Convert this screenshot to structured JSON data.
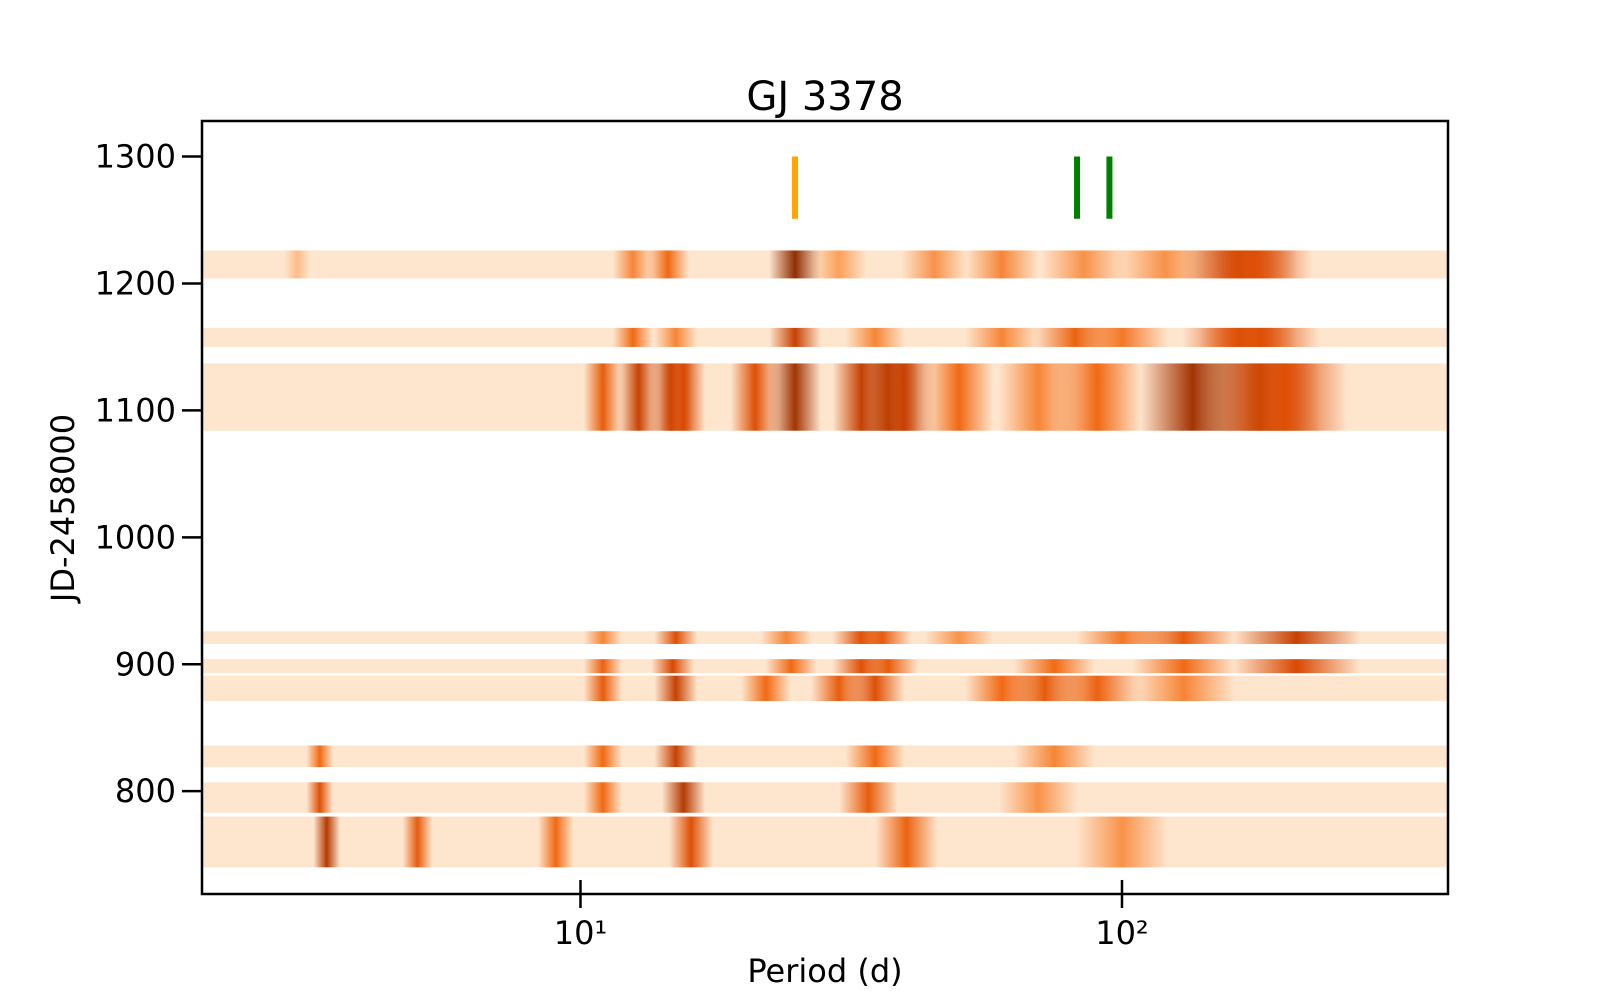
{
  "chart_data": {
    "type": "heatmap",
    "title": "GJ 3378",
    "xlabel": "Period (d)",
    "ylabel": "JD-2458000",
    "xscale": "log",
    "xlim": [
      2,
      400
    ],
    "ylim": [
      719,
      1328
    ],
    "xticks": [
      {
        "value": 10,
        "label": "10¹"
      },
      {
        "value": 100,
        "label": "10²"
      }
    ],
    "yticks": [
      800,
      900,
      1000,
      1100,
      1200,
      1300
    ],
    "colormap": [
      "#fff5eb",
      "#fdae6b",
      "#f16913",
      "#d94801",
      "#7f2704"
    ],
    "band_color": "#fee6ce",
    "marker_range": [
      1251,
      1300
    ],
    "markers": [
      {
        "period": 24.9,
        "color": "#ffa500"
      },
      {
        "period": 82.6,
        "color": "#008000"
      },
      {
        "period": 94.8,
        "color": "#008000"
      }
    ],
    "bands": [
      {
        "start": 1204,
        "end": 1226,
        "peaks": [
          {
            "period": 3,
            "power": 0.2
          },
          {
            "period": 12.5,
            "power": 0.4
          },
          {
            "period": 14.5,
            "power": 0.5
          },
          {
            "period": 24.9,
            "power": 0.95
          },
          {
            "period": 30,
            "power": 0.3
          },
          {
            "period": 45,
            "power": 0.35
          },
          {
            "period": 60,
            "power": 0.4
          },
          {
            "period": 85,
            "power": 0.35
          },
          {
            "period": 120,
            "power": 0.35
          },
          {
            "period": 165,
            "power": 0.8
          },
          {
            "period": 175,
            "power": 0.7
          }
        ]
      },
      {
        "start": 1150,
        "end": 1165,
        "peaks": [
          {
            "period": 12.5,
            "power": 0.5
          },
          {
            "period": 15,
            "power": 0.4
          },
          {
            "period": 24.9,
            "power": 0.8
          },
          {
            "period": 35,
            "power": 0.4
          },
          {
            "period": 60,
            "power": 0.4
          },
          {
            "period": 82,
            "power": 0.55
          },
          {
            "period": 100,
            "power": 0.45
          },
          {
            "period": 165,
            "power": 0.7
          },
          {
            "period": 180,
            "power": 0.7
          }
        ]
      },
      {
        "start": 1084,
        "end": 1137,
        "peaks": [
          {
            "period": 11,
            "power": 0.6
          },
          {
            "period": 12.8,
            "power": 0.8
          },
          {
            "period": 14.7,
            "power": 0.8
          },
          {
            "period": 15.5,
            "power": 0.75
          },
          {
            "period": 21,
            "power": 0.7
          },
          {
            "period": 24.9,
            "power": 0.9
          },
          {
            "period": 33,
            "power": 0.8
          },
          {
            "period": 37,
            "power": 0.85
          },
          {
            "period": 39.5,
            "power": 0.8
          },
          {
            "period": 50,
            "power": 0.5
          },
          {
            "period": 70,
            "power": 0.4
          },
          {
            "period": 90,
            "power": 0.5
          },
          {
            "period": 135,
            "power": 0.9
          },
          {
            "period": 180,
            "power": 0.85
          },
          {
            "period": 200,
            "power": 0.7
          }
        ]
      },
      {
        "start": 916,
        "end": 926,
        "peaks": [
          {
            "period": 11,
            "power": 0.4
          },
          {
            "period": 15,
            "power": 0.7
          },
          {
            "period": 24,
            "power": 0.4
          },
          {
            "period": 33,
            "power": 0.7
          },
          {
            "period": 36,
            "power": 0.6
          },
          {
            "period": 50,
            "power": 0.35
          },
          {
            "period": 100,
            "power": 0.45
          },
          {
            "period": 130,
            "power": 0.6
          },
          {
            "period": 210,
            "power": 0.8
          }
        ]
      },
      {
        "start": 893,
        "end": 904,
        "peaks": [
          {
            "period": 11,
            "power": 0.55
          },
          {
            "period": 14.8,
            "power": 0.75
          },
          {
            "period": 24.5,
            "power": 0.5
          },
          {
            "period": 33,
            "power": 0.7
          },
          {
            "period": 37,
            "power": 0.6
          },
          {
            "period": 75,
            "power": 0.5
          },
          {
            "period": 130,
            "power": 0.5
          },
          {
            "period": 210,
            "power": 0.75
          }
        ]
      },
      {
        "start": 871,
        "end": 891,
        "peaks": [
          {
            "period": 11,
            "power": 0.6
          },
          {
            "period": 15,
            "power": 0.8
          },
          {
            "period": 22,
            "power": 0.5
          },
          {
            "period": 30,
            "power": 0.6
          },
          {
            "period": 35,
            "power": 0.7
          },
          {
            "period": 60,
            "power": 0.5
          },
          {
            "period": 72,
            "power": 0.6
          },
          {
            "period": 90,
            "power": 0.55
          },
          {
            "period": 130,
            "power": 0.4
          }
        ]
      },
      {
        "start": 819,
        "end": 836,
        "peaks": [
          {
            "period": 3.3,
            "power": 0.5
          },
          {
            "period": 11,
            "power": 0.5
          },
          {
            "period": 15,
            "power": 0.8
          },
          {
            "period": 35,
            "power": 0.5
          },
          {
            "period": 75,
            "power": 0.4
          }
        ]
      },
      {
        "start": 783,
        "end": 807,
        "peaks": [
          {
            "period": 3.3,
            "power": 0.7
          },
          {
            "period": 11,
            "power": 0.5
          },
          {
            "period": 15.5,
            "power": 0.85
          },
          {
            "period": 34,
            "power": 0.6
          },
          {
            "period": 70,
            "power": 0.35
          }
        ]
      },
      {
        "start": 740,
        "end": 780,
        "peaks": [
          {
            "period": 3.4,
            "power": 0.85
          },
          {
            "period": 5,
            "power": 0.6
          },
          {
            "period": 9,
            "power": 0.5
          },
          {
            "period": 16,
            "power": 0.7
          },
          {
            "period": 40,
            "power": 0.55
          },
          {
            "period": 100,
            "power": 0.35
          }
        ]
      }
    ]
  }
}
